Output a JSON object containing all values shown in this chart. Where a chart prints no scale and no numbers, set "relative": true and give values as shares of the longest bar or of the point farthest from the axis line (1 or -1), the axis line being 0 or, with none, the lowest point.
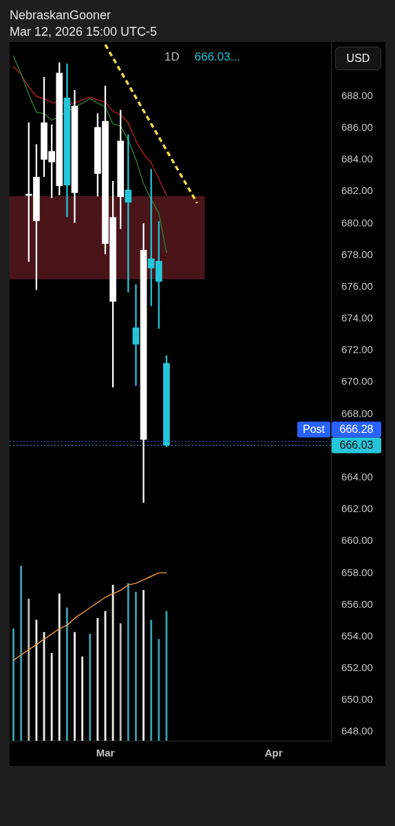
{
  "chart_data": [
    {
      "type": "candlestick",
      "title": "1D",
      "ylabel": "USD",
      "tick_labels": "y",
      "annotations": [
        "NebraskanGooner",
        "Mar 12, 2026 15:00 UTC-5",
        "666.03...",
        {
          "text": "Post",
          "y": 666.28
        }
      ],
      "categories": [
        null,
        null,
        null,
        null,
        null,
        null,
        null,
        null,
        null,
        null,
        null,
        null,
        null,
        null,
        null,
        null,
        null,
        null,
        null,
        null,
        null,
        null,
        null,
        null,
        null,
        null,
        null,
        null,
        null,
        null,
        null,
        null,
        null,
        null,
        null,
        null,
        null,
        null,
        null,
        null,
        null,
        null
      ],
      "ohlc": [
        null,
        null,
        [
          681.75,
          686.33,
          677.59,
          681.8
        ],
        [
          680.16,
          684.96,
          675.82,
          682.91
        ],
        [
          684.02,
          689.19,
          682.93,
          686.33
        ],
        [
          683.86,
          686.21,
          681.61,
          684.53
        ],
        [
          682.36,
          690.11,
          681.78,
          689.46
        ],
        [
          687.89,
          690.04,
          680.41,
          682.4
        ],
        [
          681.93,
          688.38,
          680.05,
          687.38
        ],
        null,
        null,
        [
          683.13,
          686.91,
          681.71,
          686.04
        ],
        [
          678.72,
          688.64,
          678.07,
          686.43
        ],
        [
          675.09,
          682.65,
          669.69,
          680.37
        ],
        [
          681.67,
          687.12,
          679.66,
          685.18
        ],
        [
          682.1,
          685.58,
          675.67,
          681.32
        ],
        [
          673.43,
          676.15,
          669.79,
          672.39
        ],
        [
          666.4,
          679.98,
          662.43,
          678.32
        ],
        [
          677.77,
          683.4,
          674.81,
          677.19
        ],
        [
          677.62,
          680.12,
          673.38,
          676.34
        ],
        [
          671.19,
          671.67,
          665.94,
          666.03
        ],
        null,
        null,
        null,
        null,
        null,
        null,
        null,
        null,
        null,
        null,
        null,
        null,
        null,
        null,
        null,
        null,
        null,
        null,
        null,
        null,
        null
      ],
      "colors": [
        null,
        null,
        "#ffffff",
        "#ffffff",
        "#ffffff",
        "#ffffff",
        "#ffffff",
        "#26c6da",
        "#ffffff",
        null,
        null,
        "#ffffff",
        "#ffffff",
        "#ffffff",
        "#ffffff",
        "#26c6da",
        "#26c6da",
        "#ffffff",
        "#26c6da",
        "#26c6da",
        "#26c6da",
        null,
        null,
        null,
        null,
        null,
        null,
        null,
        null,
        null,
        null,
        null,
        null,
        null,
        null,
        null,
        null,
        null,
        null,
        null,
        null,
        null
      ],
      "series": [
        {
          "type": "line",
          "color": "#2e7d32",
          "values": [
            690.52,
            689.4,
            688.13,
            686.98,
            686.91,
            686.48,
            null,
            null,
            null,
            687.56,
            687.85,
            687.56,
            687.34,
            686.26,
            686.12,
            685.25,
            684.02,
            682.5,
            681.5,
            680.63,
            678.17,
            null,
            null,
            null,
            null,
            null,
            null,
            null,
            null,
            null,
            null,
            null,
            null,
            null,
            null,
            null,
            null,
            null,
            null,
            null,
            null,
            null
          ]
        },
        {
          "type": "line",
          "color": "#b3202a",
          "values": [
            689.87,
            689.36,
            688.57,
            687.99,
            687.85,
            687.6,
            null,
            null,
            687.56,
            687.77,
            687.95,
            687.77,
            687.63,
            687.05,
            686.83,
            686.33,
            685.18,
            684.38,
            683.8,
            682.79,
            681.78,
            null,
            null,
            null,
            null,
            null,
            null,
            null,
            null,
            null,
            null,
            null,
            null,
            null,
            null,
            null,
            null,
            null,
            null,
            null,
            null,
            null
          ]
        },
        {
          "type": "line",
          "color": "#f0dc48",
          "line_style": "dashed",
          "values": [
            null,
            null,
            null,
            null,
            null,
            null,
            null,
            null,
            null,
            null,
            null,
            null,
            691.24,
            null,
            null,
            null,
            null,
            null,
            null,
            null,
            null,
            null,
            null,
            null,
            681.28,
            null,
            null,
            null,
            null,
            null,
            null,
            null,
            null,
            null,
            null,
            null,
            null,
            null,
            null,
            null,
            null,
            null
          ]
        }
      ],
      "bands": [
        {
          "axis": "y",
          "from": 676.48,
          "to": 681.71,
          "color": "#4a1519"
        }
      ],
      "ref_lines": [
        {
          "axis": "y",
          "value": 666.28,
          "label": "666.28",
          "color": "#2962ff",
          "line_style": "dotted"
        },
        {
          "axis": "y",
          "value": 666.03,
          "label": "666.03",
          "color": "#26c6da",
          "line_style": "dotted"
        }
      ],
      "ylim": [
        647.45,
        691.41
      ],
      "yticks": [
        {
          "value": 648,
          "label": "648.00"
        },
        {
          "value": 650,
          "label": "650.00"
        },
        {
          "value": 652,
          "label": "652.00"
        },
        {
          "value": 654,
          "label": "654.00"
        },
        {
          "value": 656,
          "label": "656.00"
        },
        {
          "value": 658,
          "label": "658.00"
        },
        {
          "value": 660,
          "label": "660.00"
        },
        {
          "value": 662,
          "label": "662.00"
        },
        {
          "value": 664,
          "label": "664.00"
        },
        {
          "value": 668,
          "label": "668.00"
        },
        {
          "value": 670,
          "label": "670.00"
        },
        {
          "value": 672,
          "label": "672.00"
        },
        {
          "value": 674,
          "label": "674.00"
        },
        {
          "value": 676,
          "label": "676.00"
        },
        {
          "value": 678,
          "label": "678.00"
        },
        {
          "value": 680,
          "label": "680.00"
        },
        {
          "value": 682,
          "label": "682.00"
        },
        {
          "value": 684,
          "label": "684.00"
        },
        {
          "value": 686,
          "label": "686.00"
        },
        {
          "value": 688,
          "label": "688.00"
        }
      ]
    },
    {
      "type": "bar",
      "relative": true,
      "tick_labels": "x",
      "categories": [
        null,
        null,
        null,
        null,
        null,
        null,
        null,
        null,
        null,
        null,
        null,
        null,
        "Mar",
        null,
        null,
        null,
        null,
        null,
        null,
        null,
        null,
        null,
        null,
        null,
        null,
        null,
        null,
        null,
        null,
        null,
        null,
        null,
        null,
        null,
        "Apr",
        null,
        null,
        null,
        null,
        null,
        null,
        null
      ],
      "series": [
        {
          "type": "bar",
          "colors": [
            "#3a9fb0",
            "#3a9fb0",
            "#bdbdbd",
            "#eeeeee",
            "#eeeeee",
            "#eeeeee",
            "#eeeeee",
            "#3a9fb0",
            "#eeeeee",
            "#eeeeee",
            "#3a9fb0",
            "#eeeeee",
            "#eeeeee",
            "#eeeeee",
            "#bdbdbd",
            "#3a9fb0",
            "#3a9fb0",
            "#eeeeee",
            "#3a9fb0",
            "#3a9fb0",
            "#3a9fb0",
            null,
            null,
            null,
            null,
            null,
            null,
            null,
            null,
            null,
            null,
            null,
            null,
            null,
            null,
            null,
            null,
            null,
            null,
            null,
            null,
            null
          ],
          "values": [
            0.64,
            1,
            0.81,
            0.69,
            0.62,
            0.5,
            0.84,
            0.76,
            0.62,
            0.48,
            0.61,
            0.7,
            0.74,
            0.89,
            0.67,
            0.9,
            0.85,
            0.86,
            0.69,
            0.58,
            0.74,
            null,
            null,
            null,
            null,
            null,
            null,
            null,
            null,
            null,
            null,
            null,
            null,
            null,
            null,
            null,
            null,
            null,
            null,
            null,
            null,
            null
          ]
        },
        {
          "type": "line",
          "color": "#f39c3c",
          "values": [
            0.46,
            0.49,
            0.52,
            0.55,
            0.58,
            0.61,
            0.64,
            0.66,
            0.7,
            0.73,
            0.76,
            0.79,
            0.82,
            0.84,
            0.86,
            0.89,
            0.9,
            0.92,
            0.94,
            0.96,
            0.96,
            null,
            null,
            null,
            null,
            null,
            null,
            null,
            null,
            null,
            null,
            null,
            null,
            null,
            null,
            null,
            null,
            null,
            null,
            null,
            null,
            null
          ]
        }
      ]
    }
  ]
}
